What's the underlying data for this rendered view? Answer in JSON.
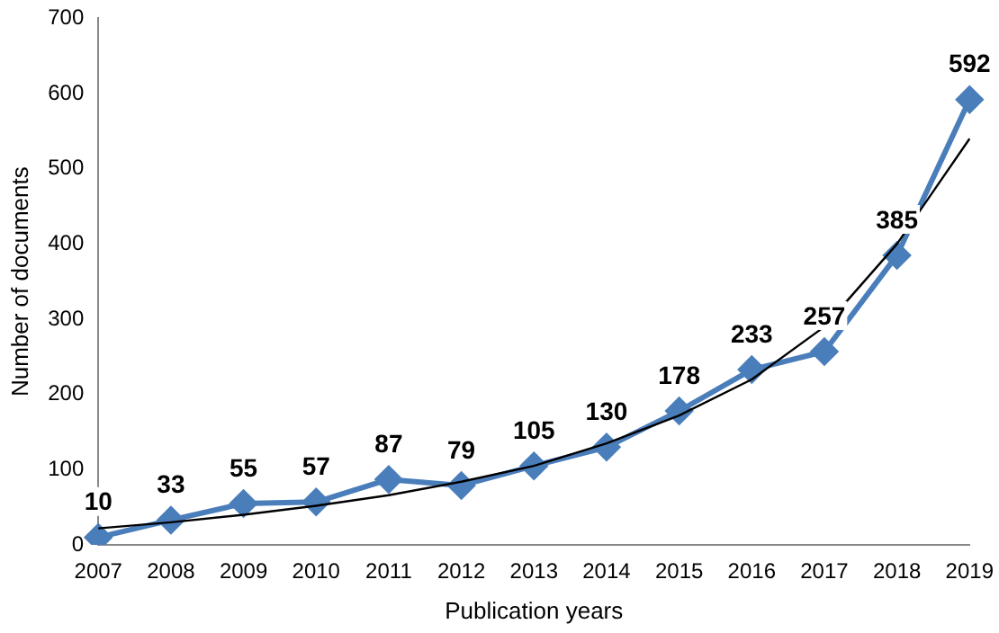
{
  "chart_data": {
    "type": "line",
    "xlabel": "Publication years",
    "ylabel": "Number of documents",
    "categories": [
      "2007",
      "2008",
      "2009",
      "2010",
      "2011",
      "2012",
      "2013",
      "2014",
      "2015",
      "2016",
      "2017",
      "2018",
      "2019"
    ],
    "series": [
      {
        "color": "#4a7ebb",
        "marker": "diamond",
        "values": [
          10,
          33,
          55,
          57,
          87,
          79,
          105,
          130,
          178,
          233,
          257,
          385,
          592
        ],
        "value_labels": [
          "10",
          "33",
          "55",
          "57",
          "87",
          "79",
          "105",
          "130",
          "178",
          "233",
          "257",
          "385",
          "592"
        ]
      },
      {
        "color": "#000000",
        "marker": "none",
        "values": [
          22,
          30,
          40,
          52,
          66,
          84,
          105,
          135,
          172,
          220,
          290,
          400,
          540
        ]
      }
    ],
    "ylim": [
      0,
      700
    ],
    "yticks": [
      0,
      100,
      200,
      300,
      400,
      500,
      600,
      700
    ],
    "grid": false,
    "legend": false
  }
}
